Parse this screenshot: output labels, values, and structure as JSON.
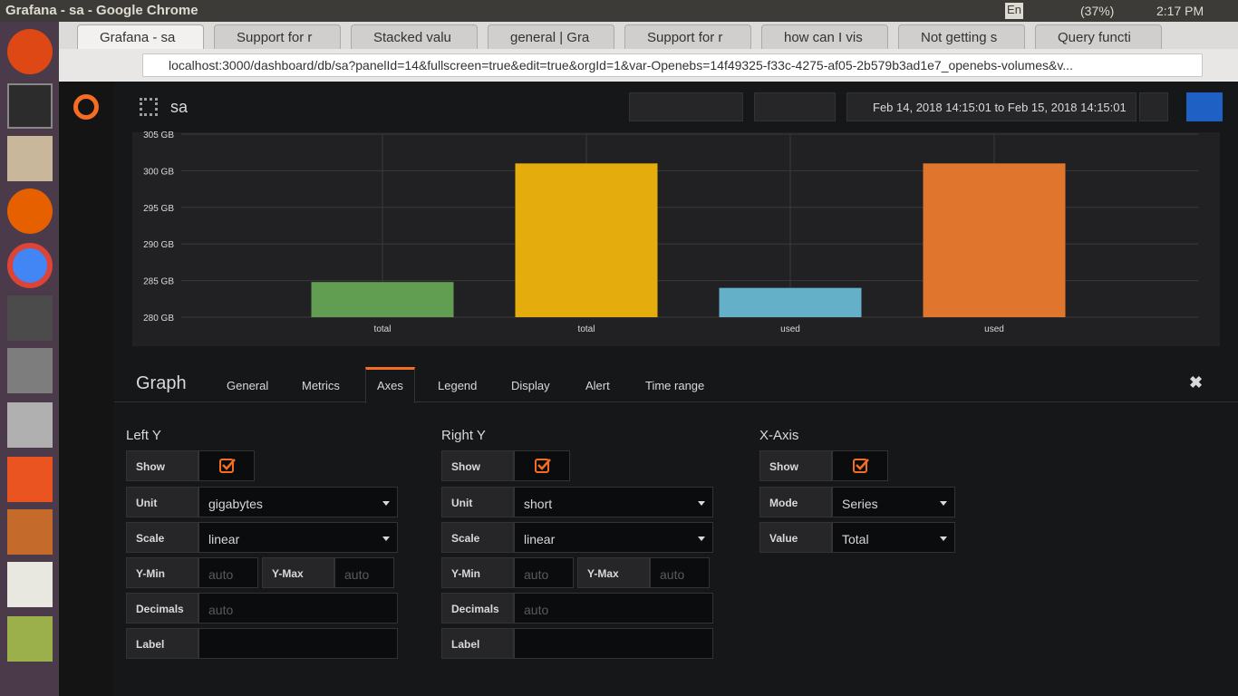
{
  "window_title": "Grafana - sa - Google Chrome",
  "system_tray": {
    "language": "En",
    "battery": "(37%)",
    "time": "2:17 PM"
  },
  "browser": {
    "tabs": [
      "Grafana - sa",
      "Support for r",
      "Stacked valu",
      "general | Gra",
      "Support for r",
      "how can I vis",
      "Not getting s",
      "Query functi"
    ],
    "url": "localhost:3000/dashboard/db/sa?panelId=14&fullscreen=true&edit=true&orgId=1&var-Openebs=14f49325-f33c-4275-af05-2b579b3ad1e7_openebs-volumes&v..."
  },
  "dashboard": {
    "title": "sa",
    "time_range": "Feb 14, 2018 14:15:01 to Feb 15, 2018 14:15:01"
  },
  "chart": {
    "type": "bar",
    "categories": [
      "total",
      "total",
      "used",
      "used"
    ],
    "values": [
      284.8,
      301,
      284,
      301
    ],
    "colors": [
      "#629e51",
      "#e5ac0e",
      "#64b0c8",
      "#e0752d"
    ],
    "ylim": [
      280,
      305
    ],
    "yticks": [
      {
        "value": 280,
        "label": "280 GB"
      },
      {
        "value": 285,
        "label": "285 GB"
      },
      {
        "value": 290,
        "label": "290 GB"
      },
      {
        "value": 295,
        "label": "295 GB"
      },
      {
        "value": 300,
        "label": "300 GB"
      },
      {
        "value": 305,
        "label": "305 GB"
      }
    ],
    "grid": true
  },
  "editor": {
    "title": "Graph",
    "tabs": [
      "General",
      "Metrics",
      "Axes",
      "Legend",
      "Display",
      "Alert",
      "Time range"
    ],
    "groups": [
      {
        "title": "Left Y",
        "fields": [
          {
            "label": "Show"
          },
          {
            "label": "Unit",
            "value": "gigabytes"
          },
          {
            "label": "Scale",
            "value": "linear"
          },
          {
            "label": "Y-Min",
            "value": "auto"
          },
          {
            "label": "Y-Max",
            "value": "auto"
          },
          {
            "label": "Decimals",
            "value": "auto"
          },
          {
            "label": "Label"
          }
        ]
      },
      {
        "title": "Right Y",
        "fields": [
          {
            "label": "Show"
          },
          {
            "label": "Unit",
            "value": "short"
          },
          {
            "label": "Scale",
            "value": "linear"
          },
          {
            "label": "Y-Min",
            "value": "auto"
          },
          {
            "label": "Y-Max",
            "value": "auto"
          },
          {
            "label": "Decimals",
            "value": "auto"
          },
          {
            "label": "Label"
          }
        ]
      },
      {
        "title": "X-Axis",
        "fields": [
          {
            "label": "Show"
          },
          {
            "label": "Mode",
            "value": "Series"
          },
          {
            "label": "Value",
            "value": "Total"
          }
        ]
      }
    ]
  }
}
